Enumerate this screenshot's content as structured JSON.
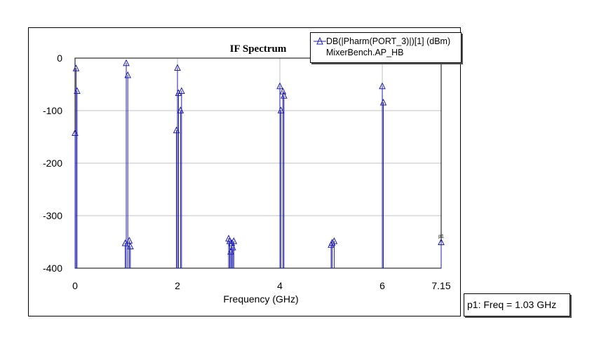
{
  "chart_data": {
    "type": "stem",
    "title": "IF Spectrum",
    "xlabel": "Frequency (GHz)",
    "ylabel": "",
    "xlim": [
      0,
      7.15
    ],
    "ylim": [
      -400,
      0
    ],
    "x_ticks": [
      "0",
      "2",
      "4",
      "6",
      "7.15"
    ],
    "y_ticks": [
      "0",
      "-100",
      "-200",
      "-300",
      "-400"
    ],
    "grid": true,
    "legend_position": "top-right",
    "series": [
      {
        "name": "DB(|Pharm(PORT_3)|)[1] (dBm)",
        "source": "MixerBench.AP_HB",
        "color": "#1f1fb0",
        "x": [
          0.0,
          0.02,
          0.04,
          0.98,
          1.0,
          1.03,
          1.06,
          1.08,
          1.98,
          2.0,
          2.02,
          2.06,
          2.08,
          3.0,
          3.02,
          3.04,
          3.06,
          3.08,
          3.1,
          4.0,
          4.02,
          4.06,
          4.08,
          5.0,
          5.02,
          5.06,
          6.0,
          6.02,
          7.15
        ],
        "y": [
          -142,
          -19,
          -62,
          -352,
          -9,
          -32,
          -347,
          -358,
          -137,
          -18,
          -66,
          -99,
          -62,
          -343,
          -348,
          -368,
          -352,
          -360,
          -348,
          -53,
          -99,
          -63,
          -71,
          -355,
          -351,
          -348,
          -53,
          -84,
          -350
        ]
      }
    ]
  },
  "legend": {
    "series_label": "DB(|Pharm(PORT_3)|)[1] (dBm)",
    "source_label": "MixerBench.AP_HB"
  },
  "marker": {
    "label": "p1: Freq = 1.03 GHz",
    "tag": "p1",
    "x": 7.15,
    "y": -350
  }
}
